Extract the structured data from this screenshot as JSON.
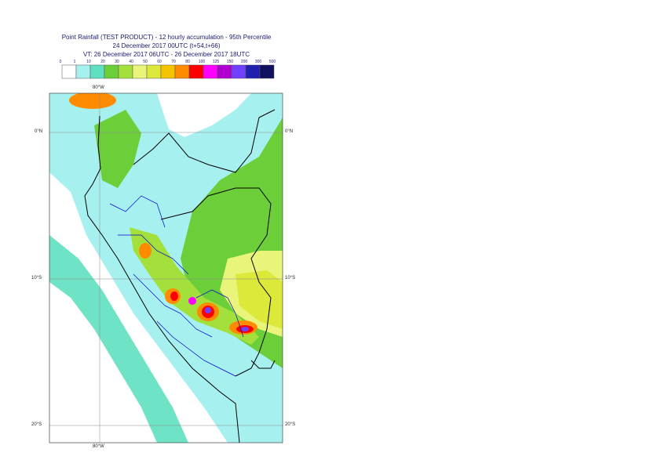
{
  "title": {
    "line1": "Point Rainfall (TEST PRODUCT) - 12 hourly accumulation - 95th Percentile",
    "line2": "24 December 2017 00UTC (t+54,t+66)",
    "line3": "VT: 26 December 2017 06UTC - 26 December 2017 18UTC"
  },
  "legend": {
    "ticks": [
      "0",
      "1",
      "10",
      "20",
      "30",
      "40",
      "50",
      "60",
      "70",
      "80",
      "100",
      "125",
      "150",
      "200",
      "300",
      "500"
    ],
    "colors": [
      "#ffffff",
      "#a7f0f0",
      "#5fe0c0",
      "#6ccf3a",
      "#a4e03c",
      "#e8f57a",
      "#dce83a",
      "#f5c200",
      "#ff8c00",
      "#ff0000",
      "#ff00ff",
      "#b000d0",
      "#7040ff",
      "#2020b0",
      "#101060"
    ]
  },
  "map": {
    "lat_labels": [
      "0°N",
      "10°S",
      "20°S"
    ],
    "lon_label_top": "80°W",
    "lon_label_bottom": "80°W",
    "colors": {
      "ocean_light": "#a7f0f0",
      "ocean_teal": "#5fe0c0",
      "green": "#6ccf3a",
      "yellow_green": "#a4e03c",
      "light_yellow": "#e8f57a",
      "yellow": "#dce83a",
      "gold": "#f5c200",
      "orange": "#ff8c00",
      "red": "#ff0000",
      "magenta": "#ff00ff",
      "purple": "#7040ff",
      "border_black": "#000000",
      "border_blue": "#0000c8",
      "grid": "#888888"
    }
  }
}
